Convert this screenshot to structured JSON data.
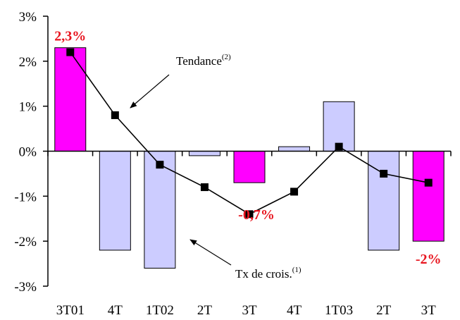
{
  "chart_data": {
    "type": "bar",
    "categories": [
      "3T01",
      "4T",
      "1T02",
      "2T",
      "3T",
      "4T",
      "1T03",
      "2T",
      "3T"
    ],
    "series": [
      {
        "type": "bar",
        "values": [
          2.3,
          -2.2,
          -2.6,
          -0.1,
          -0.7,
          0.1,
          1.1,
          -2.2,
          -2.0
        ],
        "highlight": [
          true,
          false,
          false,
          false,
          true,
          false,
          false,
          false,
          true
        ]
      },
      {
        "type": "line",
        "values": [
          2.2,
          0.8,
          -0.3,
          -0.8,
          -1.4,
          -0.9,
          0.1,
          -0.5,
          -0.7
        ]
      }
    ],
    "ylim": [
      -3,
      3
    ],
    "yticks": [
      {
        "value": 3,
        "label": "3%"
      },
      {
        "value": 2,
        "label": "2%"
      },
      {
        "value": 1,
        "label": "1%"
      },
      {
        "value": 0,
        "label": "0%"
      },
      {
        "value": -1,
        "label": "-1%"
      },
      {
        "value": -2,
        "label": "-2%"
      },
      {
        "value": -3,
        "label": "-3%"
      }
    ],
    "data_labels": [
      {
        "index": 0,
        "text": "2,3%"
      },
      {
        "index": 4,
        "text": "-0,7%"
      },
      {
        "index": 8,
        "text": "-2%"
      }
    ],
    "annotations": [
      {
        "text": "Tendance",
        "sup": "(2)",
        "target_series": 1
      },
      {
        "text": "Tx de crois.",
        "sup": "(1)",
        "target_series": 0
      }
    ],
    "grid": false,
    "colors": {
      "highlight_bar": "#ff00ff",
      "normal_bar": "#ccccff",
      "line": "#000000",
      "label": "#e8141e"
    }
  }
}
